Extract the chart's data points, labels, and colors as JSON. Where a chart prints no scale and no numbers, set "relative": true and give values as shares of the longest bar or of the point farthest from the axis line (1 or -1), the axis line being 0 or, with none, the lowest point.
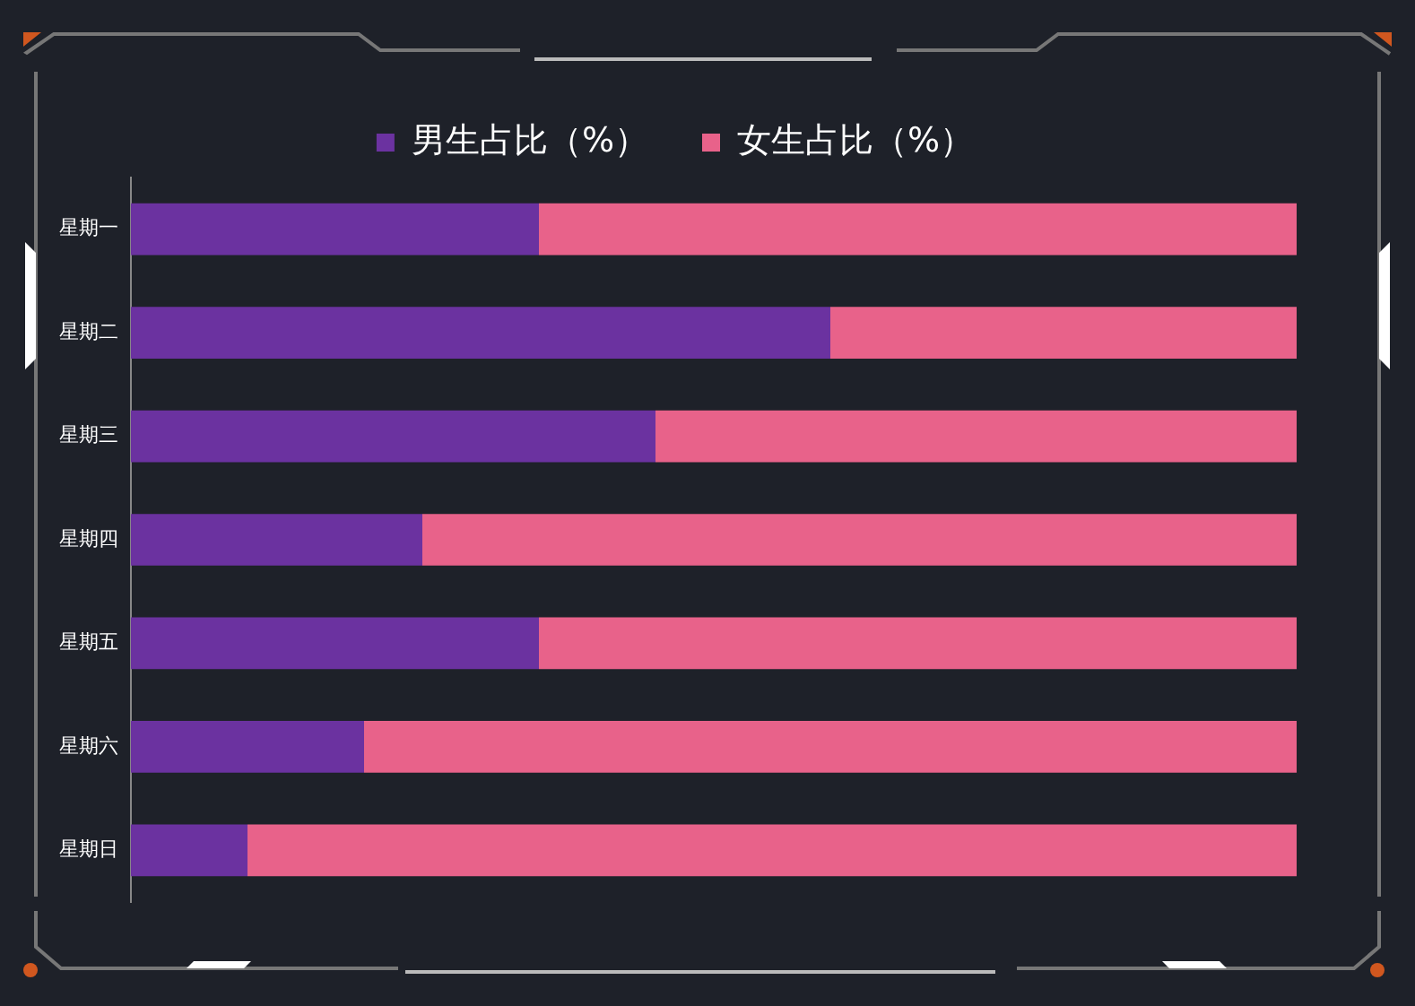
{
  "chart_data": {
    "type": "bar",
    "orientation": "horizontal",
    "stacked": true,
    "relative": true,
    "legend": "top",
    "grid": false,
    "tick_labels": "y",
    "categories": [
      "星期一",
      "星期二",
      "星期三",
      "星期四",
      "星期五",
      "星期六",
      "星期日"
    ],
    "series": [
      {
        "name": "男生占比（%）",
        "color": "#6b32a0",
        "values": [
          0.35,
          0.6,
          0.45,
          0.25,
          0.35,
          0.2,
          0.1
        ]
      },
      {
        "name": "女生占比（%）",
        "color": "#e8628a",
        "values": [
          0.65,
          0.4,
          0.55,
          0.75,
          0.65,
          0.8,
          0.9
        ]
      }
    ]
  }
}
